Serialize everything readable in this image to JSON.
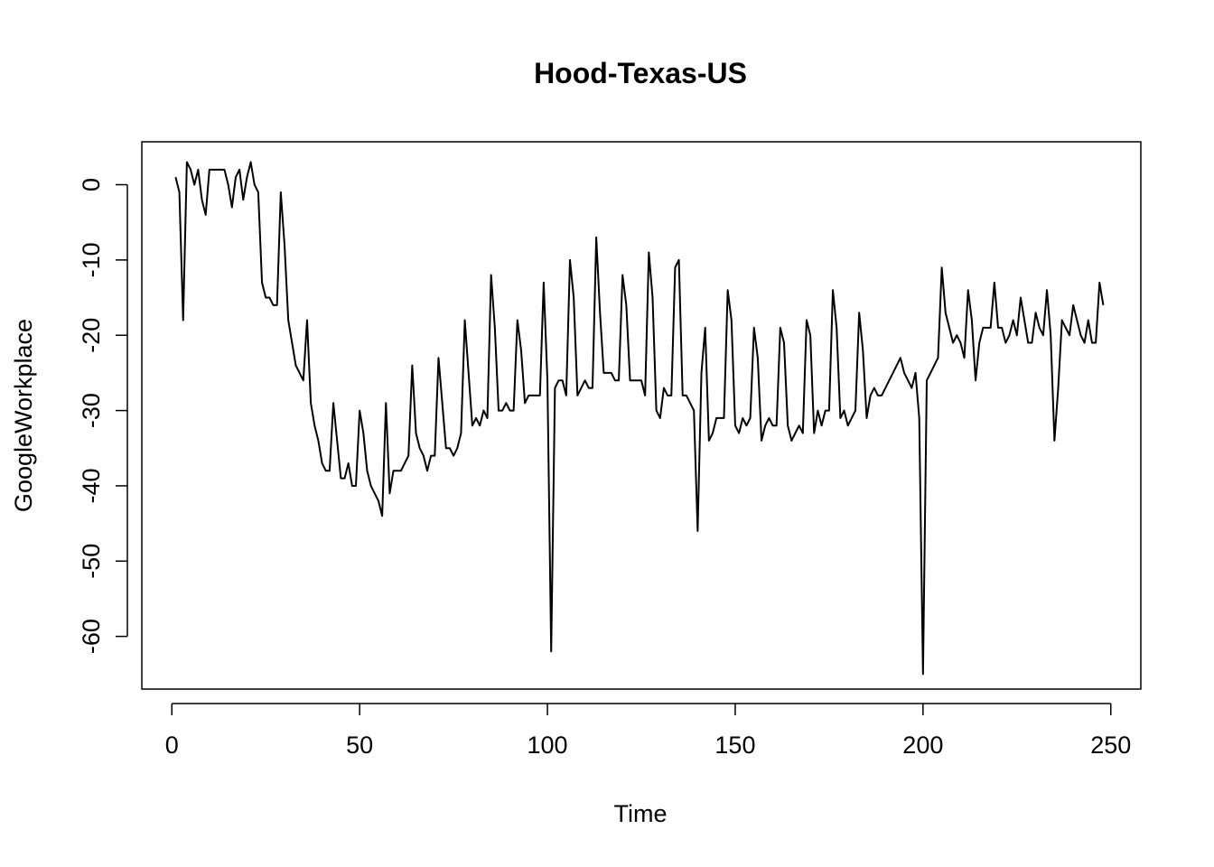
{
  "chart_data": {
    "type": "line",
    "title": "Hood-Texas-US",
    "xlabel": "Time",
    "ylabel": "GoogleWorkplace",
    "xlim": [
      -8,
      258
    ],
    "ylim": [
      -67,
      5.7
    ],
    "xticks": [
      0,
      50,
      100,
      150,
      200,
      250
    ],
    "yticks": [
      0,
      -10,
      -20,
      -30,
      -40,
      -50,
      -60
    ],
    "grid": false,
    "legend": "none",
    "series": [
      {
        "x": [
          1,
          2,
          3,
          4,
          5,
          6,
          7,
          8,
          9,
          10,
          11,
          12,
          13,
          14,
          15,
          16,
          17,
          18,
          19,
          20,
          21,
          22,
          23,
          24,
          25,
          26,
          27,
          28,
          29,
          30,
          31,
          32,
          33,
          34,
          35,
          36,
          37,
          38,
          39,
          40,
          41,
          42,
          43,
          44,
          45,
          46,
          47,
          48,
          49,
          50,
          51,
          52,
          53,
          54,
          55,
          56,
          57,
          58,
          59,
          60,
          61,
          62,
          63,
          64,
          65,
          66,
          67,
          68,
          69,
          70,
          71,
          72,
          73,
          74,
          75,
          76,
          77,
          78,
          79,
          80,
          81,
          82,
          83,
          84,
          85,
          86,
          87,
          88,
          89,
          90,
          91,
          92,
          93,
          94,
          95,
          96,
          97,
          98,
          99,
          100,
          101,
          102,
          103,
          104,
          105,
          106,
          107,
          108,
          109,
          110,
          111,
          112,
          113,
          114,
          115,
          116,
          117,
          118,
          119,
          120,
          121,
          122,
          123,
          124,
          125,
          126,
          127,
          128,
          129,
          130,
          131,
          132,
          133,
          134,
          135,
          136,
          137,
          138,
          139,
          140,
          141,
          142,
          143,
          144,
          145,
          146,
          147,
          148,
          149,
          150,
          151,
          152,
          153,
          154,
          155,
          156,
          157,
          158,
          159,
          160,
          161,
          162,
          163,
          164,
          165,
          166,
          167,
          168,
          169,
          170,
          171,
          172,
          173,
          174,
          175,
          176,
          177,
          178,
          179,
          180,
          181,
          182,
          183,
          184,
          185,
          186,
          187,
          188,
          189,
          190,
          191,
          192,
          193,
          194,
          195,
          196,
          197,
          198,
          199,
          200,
          201,
          202,
          203,
          204,
          205,
          206,
          207,
          208,
          209,
          210,
          211,
          212,
          213,
          214,
          215,
          216,
          217,
          218,
          219,
          220,
          221,
          222,
          223,
          224,
          225,
          226,
          227,
          228,
          229,
          230,
          231,
          232,
          233,
          234,
          235,
          236,
          237,
          238,
          239,
          240,
          241,
          242,
          243,
          244,
          245,
          246,
          247,
          248
        ],
        "y": [
          1,
          -1,
          -18,
          3,
          2,
          0,
          2,
          -2,
          -4,
          2,
          2,
          2,
          2,
          2,
          0,
          -3,
          1,
          2,
          -2,
          1,
          3,
          0,
          -1,
          -13,
          -15,
          -15,
          -16,
          -16,
          -1,
          -8,
          -18,
          -21,
          -24,
          -25,
          -26,
          -18,
          -29,
          -32,
          -34,
          -37,
          -38,
          -38,
          -29,
          -34,
          -39,
          -39,
          -37,
          -40,
          -40,
          -30,
          -33,
          -38,
          -40,
          -41,
          -42,
          -44,
          -29,
          -41,
          -38,
          -38,
          -38,
          -37,
          -36,
          -24,
          -33,
          -35,
          -36,
          -38,
          -36,
          -36,
          -23,
          -29,
          -35,
          -35,
          -36,
          -35,
          -33,
          -18,
          -25,
          -32,
          -31,
          -32,
          -30,
          -31,
          -12,
          -19,
          -30,
          -30,
          -29,
          -30,
          -30,
          -18,
          -22,
          -29,
          -28,
          -28,
          -28,
          -28,
          -13,
          -26,
          -62,
          -27,
          -26,
          -26,
          -28,
          -10,
          -15,
          -28,
          -27,
          -26,
          -27,
          -27,
          -7,
          -17,
          -25,
          -25,
          -25,
          -26,
          -26,
          -12,
          -16,
          -26,
          -26,
          -26,
          -26,
          -28,
          -9,
          -15,
          -30,
          -31,
          -27,
          -28,
          -28,
          -11,
          -10,
          -28,
          -28,
          -29,
          -30,
          -46,
          -25,
          -19,
          -34,
          -33,
          -31,
          -31,
          -31,
          -14,
          -18,
          -32,
          -33,
          -31,
          -32,
          -31,
          -19,
          -23,
          -34,
          -32,
          -31,
          -32,
          -32,
          -19,
          -21,
          -32,
          -34,
          -33,
          -32,
          -33,
          -18,
          -20,
          -33,
          -30,
          -32,
          -30,
          -30,
          -14,
          -19,
          -31,
          -30,
          -32,
          -31,
          -30,
          -17,
          -22,
          -31,
          -28,
          -27,
          -28,
          -28,
          -27,
          -26,
          -25,
          -24,
          -23,
          -25,
          -26,
          -27,
          -25,
          -31,
          -65,
          -26,
          -25,
          -24,
          -23,
          -11,
          -17,
          -19,
          -21,
          -20,
          -21,
          -23,
          -14,
          -18,
          -26,
          -21,
          -19,
          -19,
          -19,
          -13,
          -19,
          -19,
          -21,
          -20,
          -18,
          -20,
          -15,
          -18,
          -21,
          -21,
          -17,
          -19,
          -20,
          -14,
          -20,
          -34,
          -27,
          -18,
          -19,
          -20,
          -16,
          -18,
          -20,
          -21,
          -18,
          -21,
          -21,
          -13,
          -16
        ]
      }
    ]
  }
}
